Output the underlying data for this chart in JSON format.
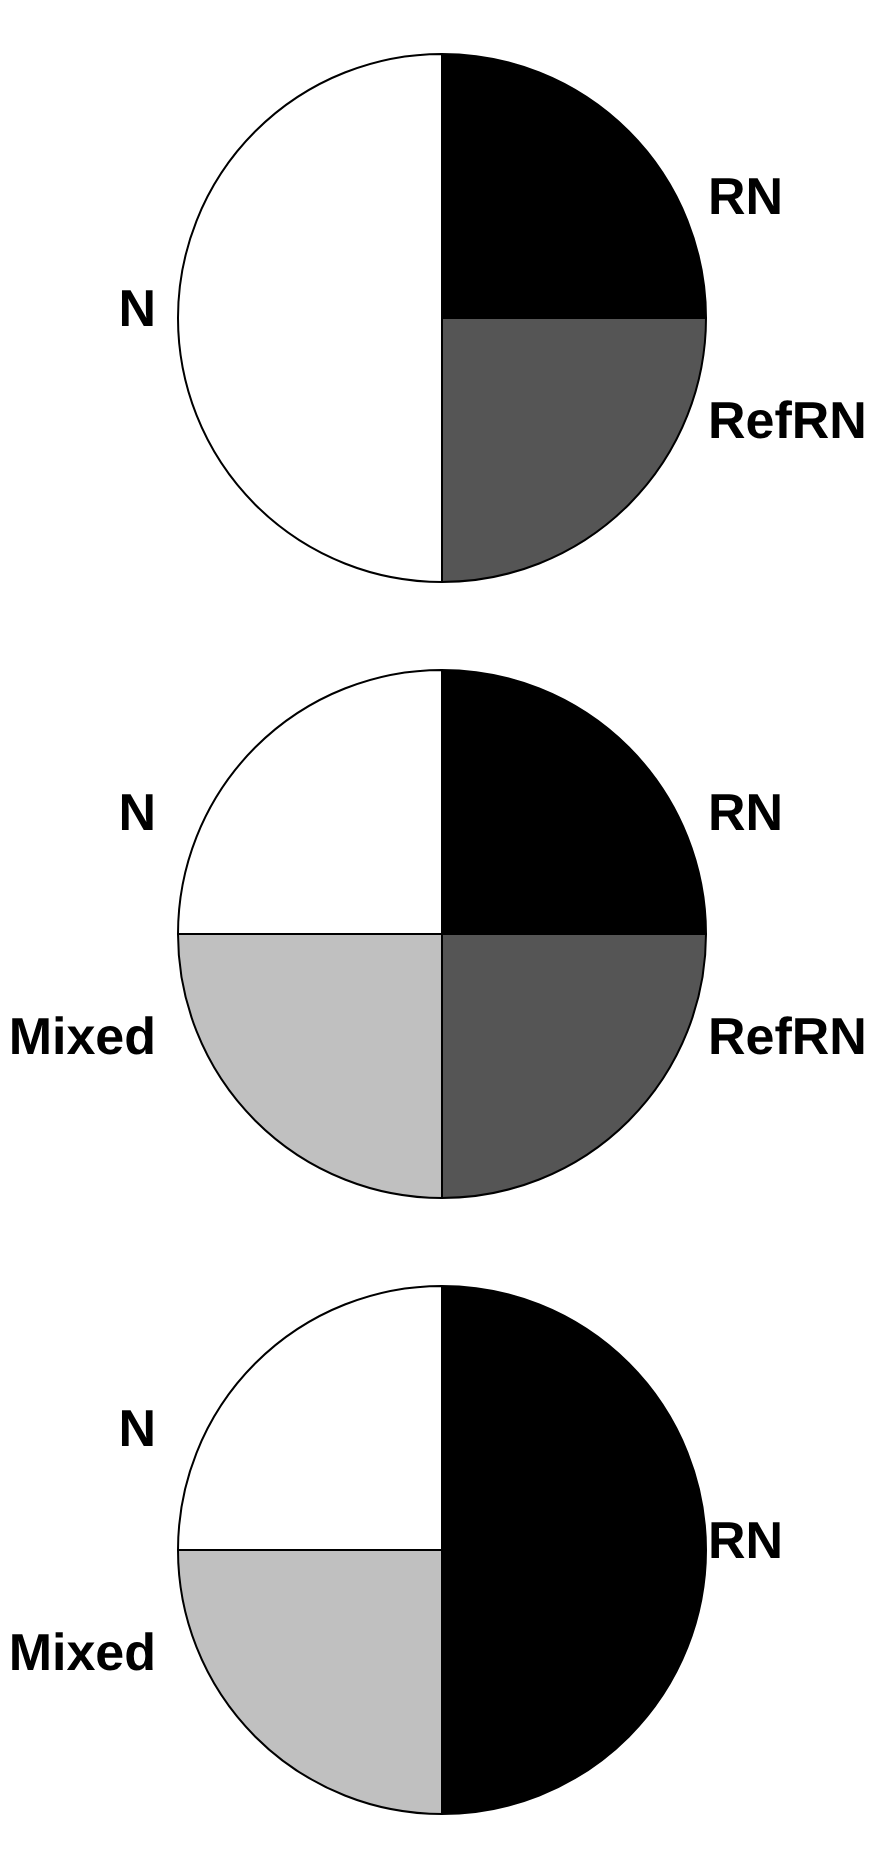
{
  "chart_data": [
    {
      "type": "pie",
      "categories": [
        "RN",
        "RefRN",
        "N"
      ],
      "values": [
        25,
        25,
        50
      ],
      "colors": [
        "#000000",
        "#555555",
        "#ffffff"
      ]
    },
    {
      "type": "pie",
      "categories": [
        "RN",
        "RefRN",
        "Mixed",
        "N"
      ],
      "values": [
        25,
        25,
        25,
        25
      ],
      "colors": [
        "#000000",
        "#555555",
        "#c0c0c0",
        "#ffffff"
      ]
    },
    {
      "type": "pie",
      "categories": [
        "RN",
        "Mixed",
        "N"
      ],
      "values": [
        50,
        25,
        25
      ],
      "colors": [
        "#000000",
        "#c0c0c0",
        "#ffffff"
      ]
    }
  ]
}
